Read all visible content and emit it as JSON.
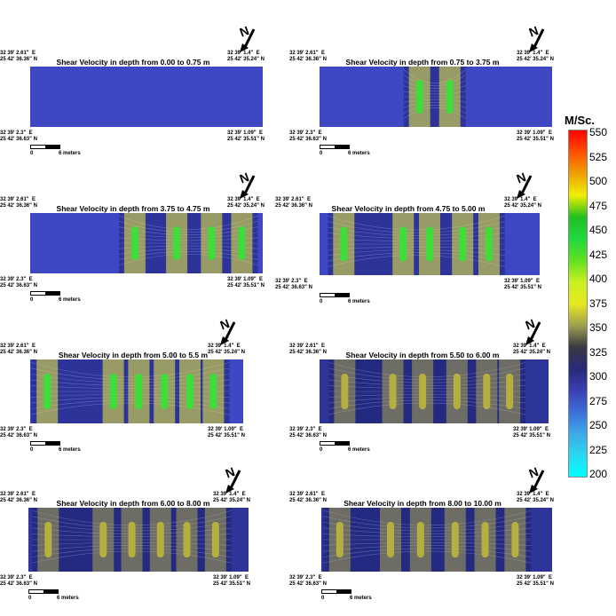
{
  "legend": {
    "unit": "M/Sc.",
    "ticks": [
      "550",
      "525",
      "500",
      "475",
      "450",
      "425",
      "400",
      "375",
      "350",
      "325",
      "300",
      "275",
      "250",
      "225",
      "200"
    ],
    "colors": [
      "#00ffff",
      "#29d8f0",
      "#3fa8e8",
      "#3c6fd8",
      "#3a3fb0",
      "#262a7a",
      "#3a3a40",
      "#a0a050",
      "#e8e820",
      "#c8f020",
      "#60e020",
      "#20d840",
      "#20c020",
      "#f0f000",
      "#f0a000",
      "#ff5000",
      "#ff0000"
    ]
  },
  "panels": [
    {
      "title": "Shear Velocity in depth from 0.00 to 0.75 m",
      "tl": "32 39' 2.61\"  E\n25 42' 36.36\" N",
      "tr": "32 39' 1.4\"  E\n25 42' 35.24\" N",
      "bl": "32 39' 2.3\"  E\n25 42' 36.63\" N",
      "br": "32 39' 1.09\"  E\n25 42' 35.51\" N",
      "scale_left": "0",
      "scale_right": "6 meters"
    },
    {
      "title": "Shear Velocity in depth from 0.75 to 3.75 m",
      "tl": "32 39' 2.61\"  E\n25 42' 36.36\" N",
      "tr": "32 39' 1.4\"  E\n25 42' 35.24\" N",
      "bl": "32 39' 2.3\"  E\n25 42' 36.63\" N",
      "br": "32 39' 1.09\"  E\n25 42' 35.51\" N",
      "scale_left": "0",
      "scale_right": "6 meters"
    },
    {
      "title": "Shear Velocity in depth from 3.75 to 4.75 m",
      "tl": "32 39' 2.61\"  E\n25 42' 36.36\" N",
      "tr": "32 39' 1.4\"  E\n25 42' 35.24\" N",
      "bl": "32 39' 2.3\"  E\n25 42' 36.63\" N",
      "br": "32 39' 1.09\"  E\n25 42' 35.51\" N",
      "scale_left": "0",
      "scale_right": "6 meters"
    },
    {
      "title": "Shear Velocity in depth from 4.75 to 5.00 m",
      "tl": "32 39' 2.61\"  E\n25 42' 36.36\" N",
      "tr": "32 39' 1.4\"  E\n25 42' 35.24\" N",
      "bl": "32 39' 2.3\"  E\n25 42' 36.63\" N",
      "br": "32 39' 1.09\"  E\n25 42' 35.51\" N",
      "scale_left": "0",
      "scale_right": "6 meters"
    },
    {
      "title": "Shear Velocity in depth from 5.00 to 5.5 m",
      "tl": "32 39' 2.61\"  E\n25 42' 36.36\" N",
      "tr": "32 39' 1.4\"  E\n25 42' 35.24\" N",
      "bl": "32 39' 2.3\"  E\n25 42' 36.63\" N",
      "br": "32 39' 1.09\"  E\n25 42' 35.51\" N",
      "scale_left": "0",
      "scale_right": "6 meters"
    },
    {
      "title": "Shear Velocity in depth from 5.50 to 6.00 m",
      "tl": "32 39' 2.61\"  E\n25 42' 36.36\" N",
      "tr": "32 39' 1.4\"  E\n25 42' 35.24\" N",
      "bl": "32 39' 2.3\"  E\n25 42' 36.63\" N",
      "br": "32 39' 1.09\"  E\n25 42' 35.51\" N",
      "scale_left": "0",
      "scale_right": "6 meters"
    },
    {
      "title": "Shear Velocity in depth from 6.00 to 8.00 m",
      "tl": "32 39' 2.61\"  E\n25 42' 36.36\" N",
      "tr": "32 39' 1.4\"  E\n25 42' 35.24\" N",
      "bl": "32 39' 2.3\"  E\n25 42' 36.63\" N",
      "br": "32 39' 1.09\"  E\n25 42' 35.51\" N",
      "scale_left": "0",
      "scale_right": "6 meters"
    },
    {
      "title": "Shear Velocity in depth from 8.00 to 10.00 m",
      "tl": "32 39' 2.61\"  E\n25 42' 36.36\" N",
      "tr": "32 39' 1.4\"  E\n25 42' 35.24\" N",
      "bl": "32 39' 2.3\"  E\n25 42' 36.63\" N",
      "br": "32 39' 1.09\"  E\n25 42' 35.51\" N",
      "scale_left": "0",
      "scale_right": "6 meters"
    }
  ],
  "chart_data": {
    "type": "heatmap",
    "colorbar_label": "M/Sc.",
    "colorbar_range": [
      200,
      550
    ],
    "colorbar_ticks": [
      550,
      525,
      500,
      475,
      450,
      425,
      400,
      375,
      350,
      325,
      300,
      275,
      250,
      225,
      200
    ],
    "maps": [
      {
        "title": "Shear Velocity in depth from 0.00 to 0.75 m",
        "anomalies": []
      },
      {
        "title": "Shear Velocity in depth from 0.75 to 3.75 m",
        "anomalies": [
          {
            "color_value": 440
          },
          {
            "color_value": 440
          }
        ]
      },
      {
        "title": "Shear Velocity in depth from 3.75 to 4.75 m",
        "anomalies": [
          {
            "color_value": 440
          },
          {
            "color_value": 440
          },
          {
            "color_value": 440
          },
          {
            "color_value": 440
          }
        ]
      },
      {
        "title": "Shear Velocity in depth from 4.75 to 5.00 m",
        "anomalies": [
          {
            "color_value": 440
          },
          {
            "color_value": 440
          },
          {
            "color_value": 440
          },
          {
            "color_value": 440
          },
          {
            "color_value": 440
          }
        ]
      },
      {
        "title": "Shear Velocity in depth from 5.00 to 5.5 m",
        "anomalies": [
          {
            "color_value": 450
          },
          {
            "color_value": 440
          },
          {
            "color_value": 440
          },
          {
            "color_value": 440
          },
          {
            "color_value": 440
          },
          {
            "color_value": 440
          }
        ]
      },
      {
        "title": "Shear Velocity in depth from 5.50 to 6.00 m",
        "anomalies": [
          {
            "color_value": 370
          },
          {
            "color_value": 370
          },
          {
            "color_value": 370
          },
          {
            "color_value": 370
          },
          {
            "color_value": 370
          },
          {
            "color_value": 370
          }
        ]
      },
      {
        "title": "Shear Velocity in depth from 6.00 to 8.00 m",
        "anomalies": [
          {
            "color_value": 380
          },
          {
            "color_value": 380
          },
          {
            "color_value": 380
          },
          {
            "color_value": 380
          },
          {
            "color_value": 380
          },
          {
            "color_value": 380
          }
        ]
      },
      {
        "title": "Shear Velocity in depth from 8.00 to 10.00 m",
        "anomalies": [
          {
            "color_value": 375
          },
          {
            "color_value": 375
          },
          {
            "color_value": 375
          },
          {
            "color_value": 375
          },
          {
            "color_value": 375
          },
          {
            "color_value": 375
          }
        ]
      }
    ]
  }
}
